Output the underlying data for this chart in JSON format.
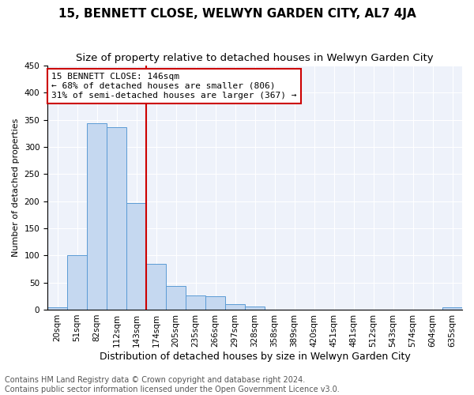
{
  "title": "15, BENNETT CLOSE, WELWYN GARDEN CITY, AL7 4JA",
  "subtitle": "Size of property relative to detached houses in Welwyn Garden City",
  "xlabel": "Distribution of detached houses by size in Welwyn Garden City",
  "ylabel": "Number of detached properties",
  "categories": [
    "20sqm",
    "51sqm",
    "82sqm",
    "112sqm",
    "143sqm",
    "174sqm",
    "205sqm",
    "235sqm",
    "266sqm",
    "297sqm",
    "328sqm",
    "358sqm",
    "389sqm",
    "420sqm",
    "451sqm",
    "481sqm",
    "512sqm",
    "543sqm",
    "574sqm",
    "604sqm",
    "635sqm"
  ],
  "values": [
    5,
    100,
    344,
    337,
    197,
    85,
    44,
    26,
    25,
    10,
    6,
    0,
    0,
    0,
    0,
    0,
    0,
    0,
    0,
    0,
    5
  ],
  "bar_color": "#c5d8f0",
  "bar_edge_color": "#5b9bd5",
  "vline_index": 4,
  "vline_color": "#cc0000",
  "annotation_line1": "15 BENNETT CLOSE: 146sqm",
  "annotation_line2": "← 68% of detached houses are smaller (806)",
  "annotation_line3": "31% of semi-detached houses are larger (367) →",
  "annotation_box_facecolor": "#ffffff",
  "annotation_box_edgecolor": "#cc0000",
  "footer_line1": "Contains HM Land Registry data © Crown copyright and database right 2024.",
  "footer_line2": "Contains public sector information licensed under the Open Government Licence v3.0.",
  "ylim": [
    0,
    450
  ],
  "yticks": [
    0,
    50,
    100,
    150,
    200,
    250,
    300,
    350,
    400,
    450
  ],
  "background_color": "#eef2fa",
  "title_fontsize": 11,
  "subtitle_fontsize": 9.5,
  "xlabel_fontsize": 9,
  "ylabel_fontsize": 8,
  "tick_fontsize": 7.5,
  "footer_fontsize": 7,
  "annotation_fontsize": 8
}
